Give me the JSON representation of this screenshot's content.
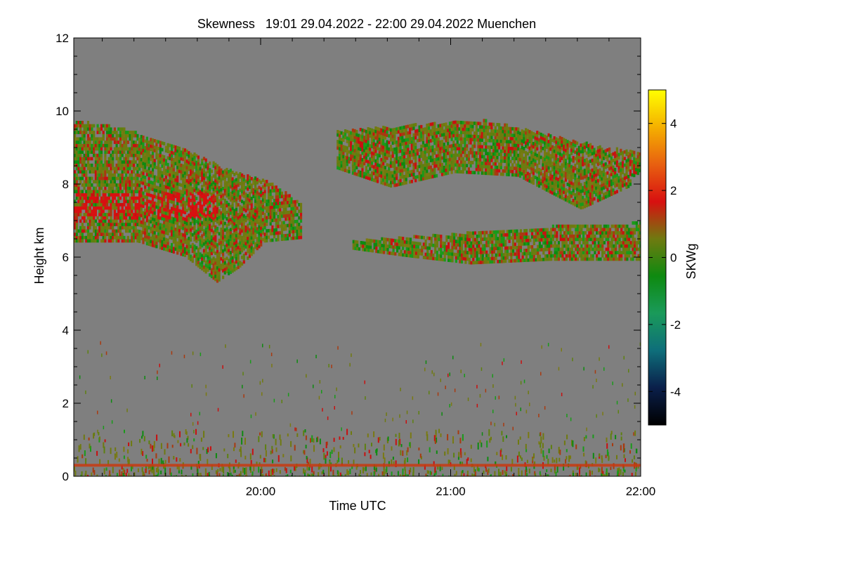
{
  "chart_data": {
    "type": "heatmap",
    "title": "Skewness   19:01 29.04.2022 - 22:00 29.04.2022 Muenchen",
    "xlabel": "Time UTC",
    "ylabel": "Height km",
    "x_range": [
      "19:01",
      "22:00"
    ],
    "ylim": [
      0,
      12
    ],
    "x_ticks": [
      {
        "label": "20:00",
        "minutes": 59
      },
      {
        "label": "21:00",
        "minutes": 119
      },
      {
        "label": "22:00",
        "minutes": 179
      }
    ],
    "y_ticks": [
      0,
      2,
      4,
      6,
      8,
      10,
      12
    ],
    "background_value": 0,
    "colorbar": {
      "label": "SKWg",
      "range": [
        -5,
        5
      ],
      "ticks": [
        -4,
        -2,
        0,
        2,
        4
      ],
      "colors": [
        "#000000",
        "#0a1f4a",
        "#0e6e7a",
        "#1a9a5a",
        "#0e8a10",
        "#6f7a10",
        "#d81010",
        "#e86010",
        "#f5b000",
        "#ffff00"
      ]
    },
    "features": [
      {
        "name": "upper cloud layer west",
        "time_range": [
          "19:01",
          "20:14"
        ],
        "height_range_km": [
          5.2,
          9.8
        ],
        "dominant_skewness": "mixed -1..+1, strong positive near 7.5 km"
      },
      {
        "name": "upper cloud layer east",
        "time_range": [
          "20:15",
          "22:00"
        ],
        "height_range_km": [
          7.3,
          9.9
        ],
        "dominant_skewness": "mixed -1..+1"
      },
      {
        "name": "mid cloud layer east",
        "time_range": [
          "20:20",
          "22:00"
        ],
        "height_range_km": [
          5.8,
          6.8
        ],
        "dominant_skewness": "mixed -1..+1"
      },
      {
        "name": "boundary layer",
        "time_range": [
          "19:01",
          "22:00"
        ],
        "height_range_km": [
          0,
          1.2
        ],
        "dominant_skewness": "noisy, positive line near 0.3 km"
      }
    ]
  },
  "colors": {
    "background_gray": "#7f7f7f",
    "positive_red": "#d81010",
    "neutral_olive": "#6f7a10",
    "negative_green": "#0e8a10"
  }
}
